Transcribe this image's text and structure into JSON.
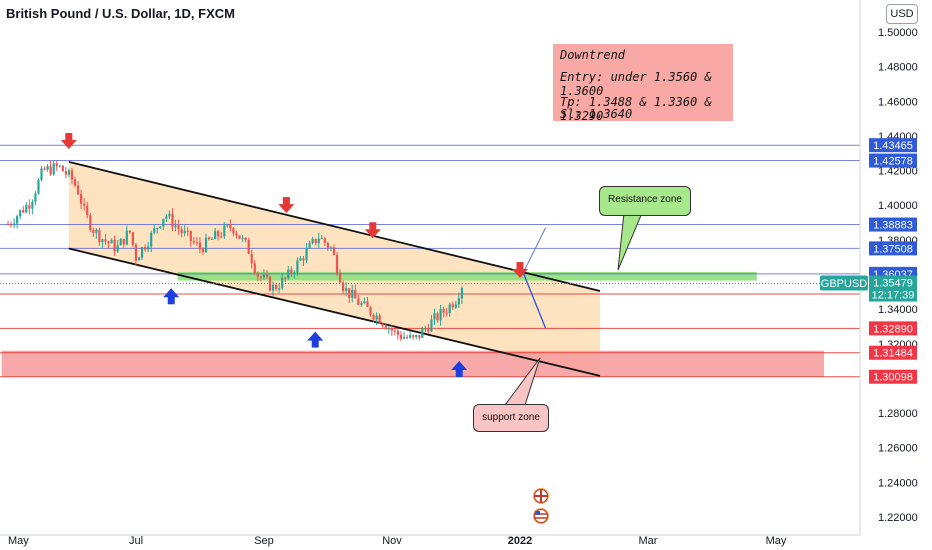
{
  "header": {
    "title": "British Pound / U.S. Dollar, 1D, FXCM",
    "currency_button": "USD"
  },
  "note": {
    "line1": "Downtrend",
    "line2": "Entry: under 1.3560 & 1.3600",
    "line3": "Tp: 1.3488 & 1.3360 & 1.3290",
    "line4": "Sl: 1.3640"
  },
  "callouts": {
    "resistance": "Resistance zone",
    "support": "support zone"
  },
  "colors": {
    "bull": "#26a69a",
    "bear": "#ef5350",
    "channel_fill": "#fde1bd",
    "resistance_zone": "#8ee07a",
    "support_zone": "#f69a9a",
    "red_line": "#e53935",
    "blue_line": "#3f51d8",
    "arrow_down": "#e53935",
    "arrow_up": "#1e3fe0",
    "price_tag": "#26a69a",
    "blue_tag": "#2f5ad8",
    "red_tag": "#f23645"
  },
  "chart_data": {
    "type": "candlestick",
    "symbol": "GBPUSD",
    "x_ticks": [
      "May",
      "Jul",
      "Sep",
      "Nov",
      "2022",
      "Mar",
      "May"
    ],
    "y_ticks": [
      "1.50000",
      "1.48000",
      "1.46000",
      "1.44000",
      "1.42000",
      "1.40000",
      "1.38000",
      "1.36000",
      "1.34000",
      "1.32000",
      "1.28000",
      "1.26000",
      "1.24000",
      "1.22000"
    ],
    "ylim": [
      1.213,
      1.5115
    ],
    "price_path": [
      [
        0,
        1.389
      ],
      [
        0.35,
        1.402
      ],
      [
        0.55,
        1.42
      ],
      [
        0.8,
        1.422
      ],
      [
        1.0,
        1.415
      ],
      [
        1.1,
        1.408
      ],
      [
        1.2,
        1.395
      ],
      [
        1.35,
        1.385
      ],
      [
        1.5,
        1.38
      ],
      [
        1.7,
        1.375
      ],
      [
        1.9,
        1.385
      ],
      [
        2.0,
        1.37
      ],
      [
        2.25,
        1.383
      ],
      [
        2.45,
        1.395
      ],
      [
        2.7,
        1.385
      ],
      [
        2.85,
        1.38
      ],
      [
        3.0,
        1.375
      ],
      [
        3.25,
        1.382
      ],
      [
        3.5,
        1.388
      ],
      [
        3.75,
        1.375
      ],
      [
        3.9,
        1.36
      ],
      [
        4.15,
        1.352
      ],
      [
        4.35,
        1.358
      ],
      [
        4.6,
        1.37
      ],
      [
        4.85,
        1.382
      ],
      [
        5.05,
        1.375
      ],
      [
        5.25,
        1.352
      ],
      [
        5.5,
        1.343
      ],
      [
        5.8,
        1.335
      ],
      [
        6.05,
        1.326
      ],
      [
        6.35,
        1.322
      ],
      [
        6.6,
        1.332
      ],
      [
        6.85,
        1.34
      ],
      [
        7.0,
        1.346
      ],
      [
        7.1,
        1.3548
      ]
    ],
    "horizontal_levels": [
      {
        "price": 1.43465,
        "label": "1.43465",
        "style": "blue"
      },
      {
        "price": 1.42578,
        "label": "1.42578",
        "style": "blue"
      },
      {
        "price": 1.38883,
        "label": "1.38883",
        "style": "blue"
      },
      {
        "price": 1.37508,
        "label": "1.37508",
        "style": "blue"
      },
      {
        "price": 1.36037,
        "label": "1.36037",
        "style": "blue"
      },
      {
        "price": 1.34872,
        "label": "1.34872",
        "style": "red"
      },
      {
        "price": 1.3289,
        "label": "1.32890",
        "style": "red"
      },
      {
        "price": 1.31484,
        "label": "1.31484",
        "style": "red"
      },
      {
        "price": 1.30098,
        "label": "1.30098",
        "style": "red"
      }
    ],
    "current_price": {
      "symbol": "GBPUSD",
      "price": "1.35479",
      "countdown": "12:17:39"
    },
    "channel": {
      "upper": [
        [
          0.95,
          1.425
        ],
        [
          9.25,
          1.3505
        ]
      ],
      "lower": [
        [
          0.95,
          1.375
        ],
        [
          9.25,
          1.3015
        ]
      ]
    },
    "resistance_zone": {
      "x": [
        2.65,
        11.7
      ],
      "y": [
        1.3565,
        1.3615
      ]
    },
    "support_zone": {
      "x": [
        -0.1,
        12.75
      ],
      "y": [
        1.301,
        1.316
      ]
    },
    "forecast": {
      "start": [
        8.05,
        1.361
      ],
      "up_target": [
        8.4,
        1.387
      ],
      "down_target": [
        8.4,
        1.329
      ]
    },
    "arrows_down": [
      [
        0.95,
        1.4365
      ],
      [
        4.35,
        1.3995
      ],
      [
        5.7,
        1.385
      ],
      [
        8.0,
        1.362
      ]
    ],
    "arrows_up": [
      [
        2.55,
        1.348
      ],
      [
        4.8,
        1.323
      ],
      [
        7.05,
        1.306
      ]
    ]
  }
}
